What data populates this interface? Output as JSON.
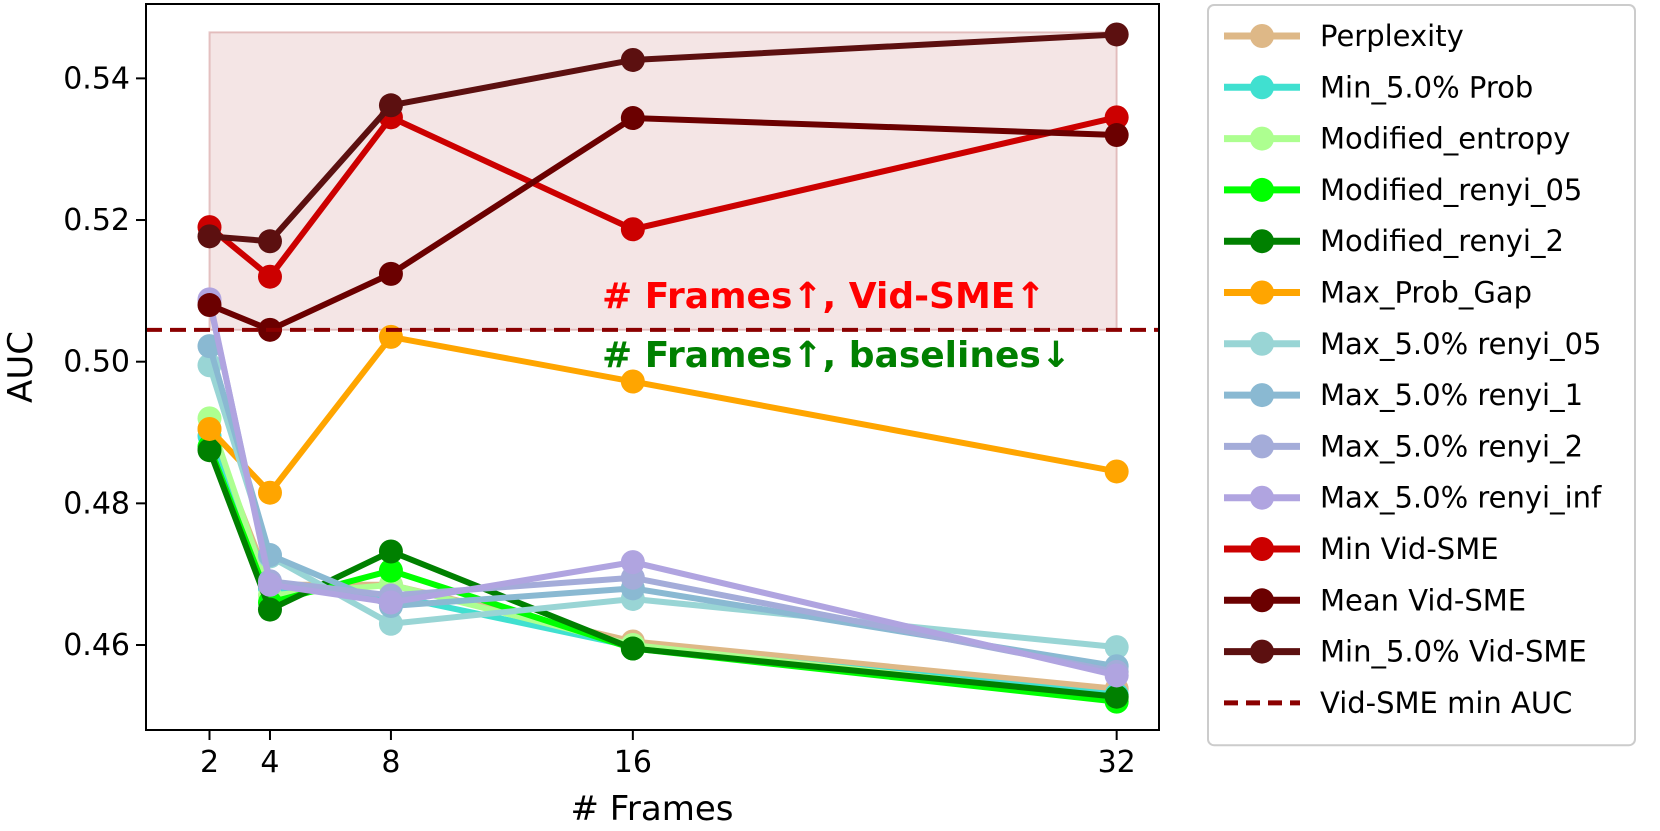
{
  "chart_data": {
    "type": "line",
    "xlabel": "# Frames",
    "ylabel": "AUC",
    "x": [
      2,
      4,
      8,
      16,
      32
    ],
    "xticks": [
      2,
      4,
      8,
      16,
      32
    ],
    "xlim": [
      -0.1,
      33.4
    ],
    "yticks": [
      0.46,
      0.48,
      0.5,
      0.52,
      0.54
    ],
    "ylim": [
      0.448,
      0.5505
    ],
    "grid": false,
    "legend_position": "outside-right",
    "shaded_region": {
      "x": [
        2,
        32
      ],
      "y": [
        0.5045,
        0.5465
      ],
      "color": "#a52a2a"
    },
    "reference_line": {
      "name": "Vid-SME min AUC",
      "y": 0.5045,
      "color": "#8b0000",
      "style": "dashed"
    },
    "annotations": [
      {
        "text": "# Frames↑, Vid-SME↑",
        "color": "#ff0000"
      },
      {
        "text": "# Frames↑, baselines↓",
        "color": "#008000"
      }
    ],
    "series": [
      {
        "name": "Perplexity",
        "color": "#deb887",
        "values": [
          0.4905,
          0.4685,
          0.4685,
          0.4605,
          0.4538
        ]
      },
      {
        "name": "Min_5.0% Prob",
        "color": "#40e0d0",
        "values": [
          0.4895,
          0.468,
          0.467,
          0.4598,
          0.453
        ]
      },
      {
        "name": "Modified_entropy",
        "color": "#adff90",
        "values": [
          0.492,
          0.467,
          0.4685,
          0.46,
          0.4525
        ]
      },
      {
        "name": "Modified_renyi_05",
        "color": "#00ff00",
        "values": [
          0.488,
          0.466,
          0.4705,
          0.4595,
          0.452
        ]
      },
      {
        "name": "Modified_renyi_2",
        "color": "#008000",
        "values": [
          0.4875,
          0.465,
          0.4732,
          0.4595,
          0.4527
        ]
      },
      {
        "name": "Max_Prob_Gap",
        "color": "#ffa500",
        "values": [
          0.4905,
          0.4815,
          0.5035,
          0.4972,
          0.4845
        ]
      },
      {
        "name": "Max_5.0% renyi_05",
        "color": "#99d5d5",
        "values": [
          0.4995,
          0.4725,
          0.463,
          0.4665,
          0.4597
        ]
      },
      {
        "name": "Max_5.0% renyi_1",
        "color": "#8ab9d2",
        "values": [
          0.5022,
          0.4727,
          0.4655,
          0.468,
          0.457
        ]
      },
      {
        "name": "Max_5.0% renyi_2",
        "color": "#a4acd9",
        "values": [
          0.5085,
          0.469,
          0.467,
          0.4695,
          0.4562
        ]
      },
      {
        "name": "Max_5.0% renyi_inf",
        "color": "#b0a4e0",
        "values": [
          0.5088,
          0.4685,
          0.466,
          0.4717,
          0.4557
        ]
      },
      {
        "name": "Min Vid-SME",
        "color": "#cc0000",
        "values": [
          0.519,
          0.512,
          0.5345,
          0.5187,
          0.5345
        ]
      },
      {
        "name": "Mean Vid-SME",
        "color": "#6b0000",
        "values": [
          0.508,
          0.5045,
          0.5124,
          0.5344,
          0.532
        ]
      },
      {
        "name": "Min_5.0% Vid-SME",
        "color": "#5c1010",
        "values": [
          0.5177,
          0.517,
          0.5362,
          0.5426,
          0.5462
        ]
      }
    ]
  }
}
